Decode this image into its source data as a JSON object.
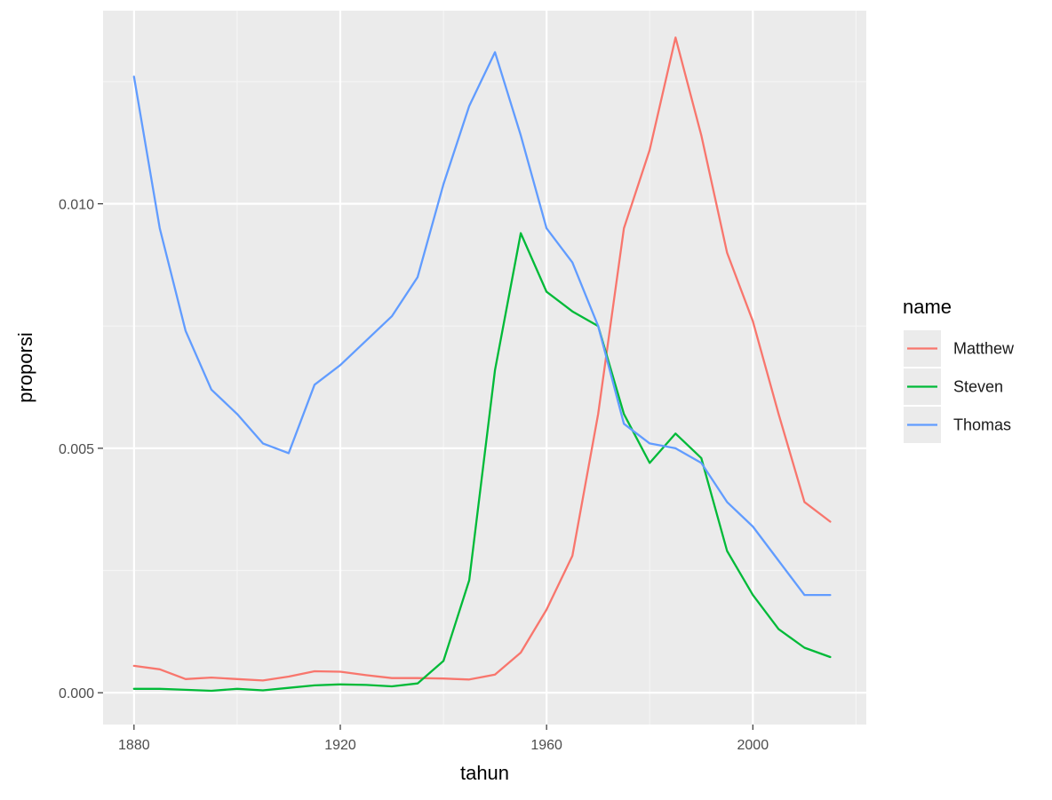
{
  "chart_data": {
    "type": "line",
    "xlabel": "tahun",
    "ylabel": "proporsi",
    "xlim": [
      1874,
      2022
    ],
    "ylim": [
      -0.00065,
      0.01395
    ],
    "x_ticks": [
      1880,
      1920,
      1960,
      2000
    ],
    "x_tick_labels": [
      "1880",
      "1920",
      "1960",
      "2000"
    ],
    "y_ticks": [
      0.0,
      0.005,
      0.01
    ],
    "y_tick_labels": [
      "0.000",
      "0.005",
      "0.010"
    ],
    "grid": true,
    "legend": {
      "title": "name",
      "position": "right"
    },
    "x": [
      1880,
      1885,
      1890,
      1895,
      1900,
      1905,
      1910,
      1915,
      1920,
      1925,
      1930,
      1935,
      1940,
      1945,
      1950,
      1955,
      1960,
      1965,
      1970,
      1975,
      1980,
      1985,
      1990,
      1995,
      2000,
      2005,
      2010,
      2015
    ],
    "series": [
      {
        "name": "Matthew",
        "color": "#F8766D",
        "values": [
          0.00055,
          0.00048,
          0.00028,
          0.00031,
          0.00028,
          0.00025,
          0.00033,
          0.00044,
          0.00043,
          0.00036,
          0.0003,
          0.0003,
          0.00029,
          0.00027,
          0.00037,
          0.00082,
          0.0017,
          0.0028,
          0.0057,
          0.0095,
          0.0111,
          0.0134,
          0.0114,
          0.009,
          0.0076,
          0.0057,
          0.0039,
          0.0035
        ]
      },
      {
        "name": "Steven",
        "color": "#00BA38",
        "values": [
          8e-05,
          8e-05,
          6e-05,
          4e-05,
          8e-05,
          5e-05,
          0.0001,
          0.00015,
          0.00017,
          0.00016,
          0.00013,
          0.00019,
          0.00065,
          0.0023,
          0.0066,
          0.0094,
          0.0082,
          0.0078,
          0.0075,
          0.0057,
          0.0047,
          0.0053,
          0.0048,
          0.0029,
          0.002,
          0.0013,
          0.00092,
          0.00073
        ]
      },
      {
        "name": "Thomas",
        "color": "#619CFF",
        "values": [
          0.0126,
          0.0095,
          0.0074,
          0.0062,
          0.0057,
          0.0051,
          0.0049,
          0.0063,
          0.0067,
          0.0072,
          0.0077,
          0.0085,
          0.0104,
          0.012,
          0.0131,
          0.0114,
          0.0095,
          0.0088,
          0.0075,
          0.0055,
          0.0051,
          0.005,
          0.0047,
          0.0039,
          0.0034,
          0.0027,
          0.002,
          0.002
        ]
      }
    ]
  },
  "colors": {
    "panel_background": "#EBEBEB",
    "grid_major": "#FFFFFF",
    "grid_minor": "#F5F5F5",
    "tick_text": "#4D4D4D"
  }
}
